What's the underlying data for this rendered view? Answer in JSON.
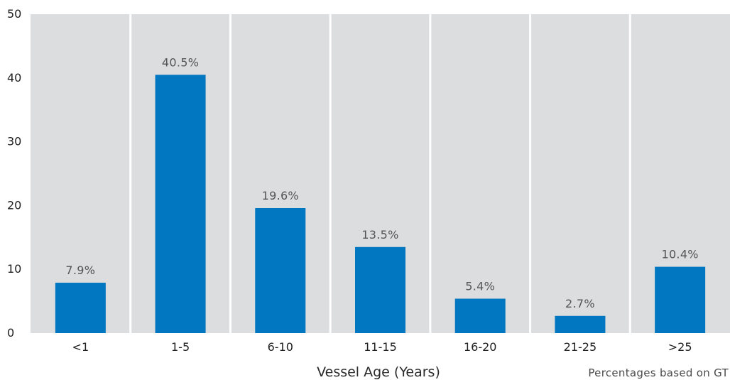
{
  "chart_data": {
    "type": "bar",
    "categories": [
      "<1",
      "1-5",
      "6-10",
      "11-15",
      "16-20",
      "21-25",
      ">25"
    ],
    "values": [
      7.9,
      40.5,
      19.6,
      13.5,
      5.4,
      2.7,
      10.4
    ],
    "data_labels": [
      "7.9%",
      "40.5%",
      "19.6%",
      "13.5%",
      "5.4%",
      "2.7%",
      "10.4%"
    ],
    "xlabel": "Vessel Age (Years)",
    "ylabel": "",
    "ylim": [
      0,
      50
    ],
    "yticks": [
      "0",
      "10",
      "20",
      "30",
      "40",
      "50"
    ],
    "y_tick_values": [
      0,
      10,
      20,
      30,
      40,
      50
    ],
    "footnote": "Percentages based on GT",
    "grid": false,
    "legend": "none"
  },
  "colors": {
    "bar": "#0077c0",
    "panel_background": "#dcdddf",
    "panel_separator": "#ffffff"
  }
}
